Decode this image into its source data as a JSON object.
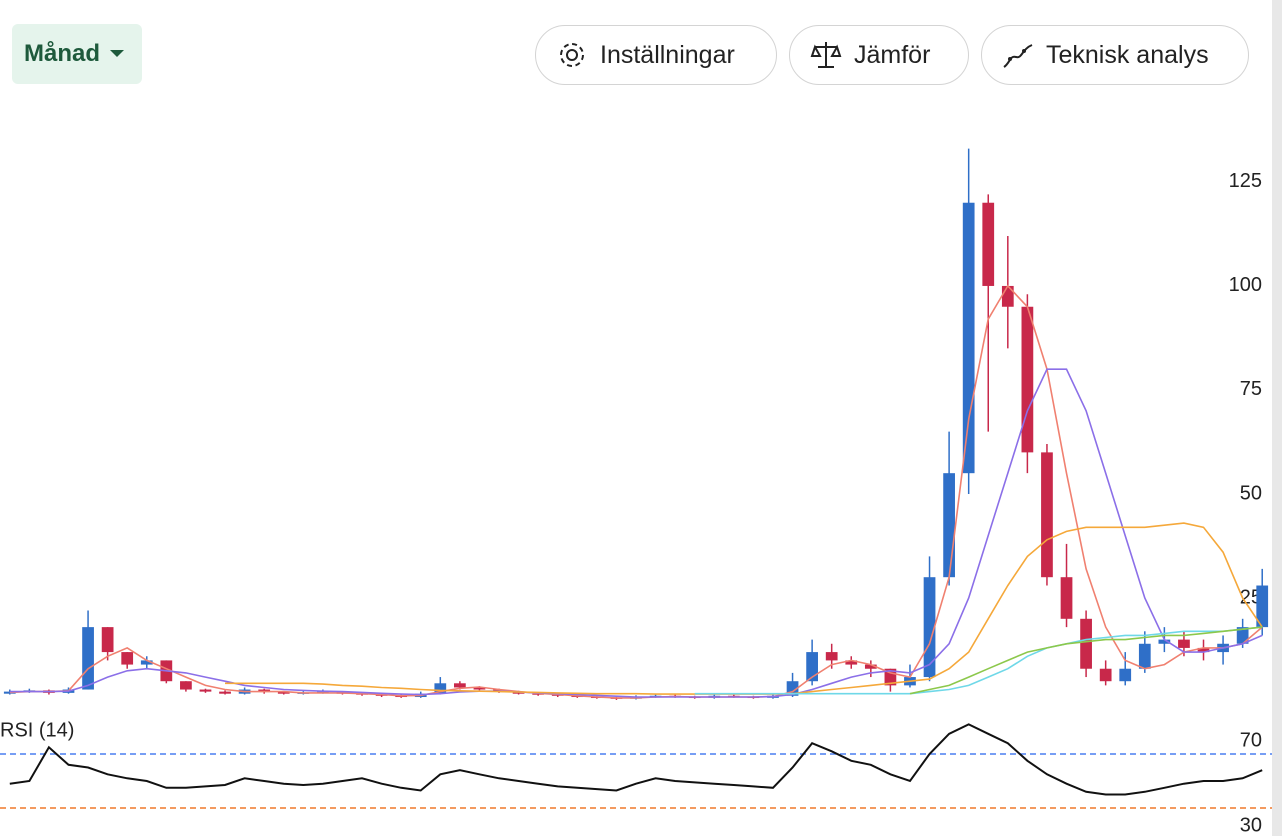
{
  "toolbar": {
    "period": "Månad",
    "buttons": [
      "Inställningar",
      "Jämför",
      "Teknisk analys"
    ]
  },
  "chart_data": [
    {
      "type": "candlestick",
      "up_color": "#2f6fc8",
      "down_color": "#c8284a",
      "ylim": [
        -3,
        137
      ],
      "yticks": [
        25,
        50,
        75,
        100,
        125
      ],
      "open": [
        2,
        2.5,
        2.8,
        2.2,
        3,
        18,
        12,
        9,
        10,
        5,
        3,
        2.5,
        2,
        3,
        2.5,
        2,
        2.2,
        2.5,
        2,
        1.8,
        1.5,
        1.2,
        2,
        4.5,
        3.5,
        3,
        2.5,
        2,
        1.8,
        1.5,
        1.2,
        1,
        0.8,
        1.2,
        1.5,
        1.2,
        1,
        1.5,
        1.2,
        1,
        1.5,
        5,
        12,
        10,
        9,
        8,
        4,
        6,
        30,
        55,
        120,
        100,
        95,
        60,
        30,
        20,
        8,
        5,
        8,
        14,
        15,
        13,
        12,
        14,
        18
      ],
      "high": [
        3,
        3.2,
        3,
        3.5,
        22,
        18,
        12,
        11,
        10,
        5,
        3.2,
        2.8,
        3.5,
        3.2,
        2.6,
        2.6,
        3,
        2.6,
        2.2,
        2,
        1.8,
        2.5,
        6,
        5,
        3.8,
        3.2,
        2.7,
        2.2,
        2,
        1.7,
        1.4,
        1.2,
        1.6,
        2,
        1.8,
        1.5,
        2,
        1.8,
        1.5,
        2,
        7,
        15,
        14,
        11,
        10,
        8,
        9,
        35,
        65,
        133,
        122,
        112,
        98,
        62,
        38,
        22,
        10,
        12,
        17,
        18,
        17,
        15,
        16,
        20,
        32
      ],
      "low": [
        1.8,
        2.2,
        1.8,
        2,
        3,
        10,
        8,
        8,
        4.5,
        2.5,
        2.2,
        1.8,
        1.8,
        2,
        1.8,
        1.8,
        2,
        1.8,
        1.5,
        1.2,
        1,
        1,
        1.8,
        3,
        2.8,
        2.2,
        1.8,
        1.5,
        1.2,
        1,
        0.8,
        0.5,
        0.6,
        1,
        1,
        0.8,
        0.8,
        1,
        0.8,
        0.8,
        1.2,
        4,
        8,
        8,
        6,
        2.5,
        3.5,
        5,
        28,
        50,
        65,
        85,
        55,
        28,
        18,
        6,
        4,
        4,
        7,
        12,
        11,
        10,
        9,
        13,
        16
      ],
      "close": [
        2.5,
        2.8,
        2.2,
        3,
        18,
        12,
        9,
        10,
        5,
        3,
        2.5,
        2,
        3,
        2.5,
        2,
        2.2,
        2.5,
        2,
        1.8,
        1.5,
        1.2,
        2,
        4.5,
        3.5,
        3,
        2.5,
        2,
        1.8,
        1.5,
        1.2,
        1,
        0.8,
        1.2,
        1.5,
        1.2,
        1,
        1.5,
        1.2,
        1,
        1.5,
        5,
        12,
        10,
        9,
        8,
        4,
        6,
        30,
        55,
        120,
        100,
        95,
        60,
        30,
        20,
        8,
        5,
        8,
        14,
        15,
        13,
        12,
        14,
        18,
        28
      ],
      "series": [
        {
          "color": "#f08070",
          "values": [
            2.3,
            2.5,
            2.5,
            2.7,
            8,
            11,
            13,
            10,
            8,
            6,
            4,
            3,
            2.5,
            2.5,
            2.5,
            2.2,
            2.2,
            2.2,
            2,
            1.8,
            1.5,
            1.6,
            2.5,
            3.3,
            3.6,
            3,
            2.5,
            2.1,
            1.8,
            1.5,
            1.2,
            1,
            1,
            1.2,
            1.3,
            1.2,
            1.2,
            1.2,
            1.2,
            1.3,
            2.5,
            6,
            9,
            10,
            9,
            7,
            6,
            14,
            30,
            68,
            92,
            100,
            95,
            80,
            55,
            32,
            18,
            10,
            8,
            9,
            12,
            13,
            13,
            14,
            18
          ]
        },
        {
          "color": "#8b6fe8",
          "values": [
            2.5,
            2.5,
            2.5,
            2.6,
            4,
            6,
            7.5,
            8,
            7.5,
            7,
            6,
            5,
            4,
            3.5,
            3,
            2.8,
            2.6,
            2.5,
            2.3,
            2.1,
            1.9,
            1.8,
            2,
            2.4,
            2.6,
            2.6,
            2.4,
            2.2,
            2,
            1.8,
            1.6,
            1.4,
            1.2,
            1.2,
            1.2,
            1.2,
            1.2,
            1.2,
            1.2,
            1.3,
            1.8,
            3,
            4.5,
            6,
            7,
            7.5,
            7,
            9,
            14,
            25,
            40,
            55,
            70,
            80,
            80,
            70,
            55,
            40,
            25,
            15,
            12,
            12,
            13,
            14,
            16
          ]
        },
        {
          "color": "#f5a83a",
          "values": [
            null,
            null,
            null,
            null,
            null,
            null,
            null,
            null,
            null,
            null,
            null,
            4.5,
            4.5,
            4.5,
            4.5,
            4.5,
            4.3,
            4,
            3.8,
            3.5,
            3.3,
            3,
            2.8,
            2.7,
            2.6,
            2.5,
            2.4,
            2.3,
            2.2,
            2.1,
            2,
            2,
            2,
            1.9,
            1.9,
            1.9,
            1.9,
            1.9,
            1.9,
            1.9,
            2,
            2.5,
            3,
            3.5,
            4,
            4.5,
            5,
            5.5,
            8,
            12,
            20,
            28,
            35,
            39,
            41,
            42,
            42,
            42,
            42,
            42.5,
            43,
            42,
            36,
            25,
            18
          ]
        },
        {
          "color": "#6fd8e8",
          "values": [
            null,
            null,
            null,
            null,
            null,
            null,
            null,
            null,
            null,
            null,
            null,
            null,
            null,
            null,
            null,
            null,
            null,
            null,
            null,
            null,
            null,
            null,
            null,
            null,
            null,
            null,
            null,
            null,
            null,
            null,
            null,
            null,
            null,
            null,
            null,
            2,
            2,
            2,
            2,
            2,
            2,
            2,
            2,
            2,
            2,
            2,
            2,
            2.5,
            3,
            4,
            6,
            8,
            11,
            13,
            14,
            15,
            15.5,
            16,
            16,
            16.5,
            17,
            17,
            17,
            17.5,
            18
          ]
        },
        {
          "color": "#8cc84b",
          "values": [
            null,
            null,
            null,
            null,
            null,
            null,
            null,
            null,
            null,
            null,
            null,
            null,
            null,
            null,
            null,
            null,
            null,
            null,
            null,
            null,
            null,
            null,
            null,
            null,
            null,
            null,
            null,
            null,
            null,
            null,
            null,
            null,
            null,
            null,
            null,
            null,
            null,
            null,
            null,
            null,
            null,
            null,
            null,
            null,
            null,
            null,
            2,
            3,
            4,
            6,
            8,
            10,
            12,
            13,
            14,
            14.5,
            15,
            15,
            15.5,
            16,
            16,
            16.5,
            17,
            17.5,
            18
          ]
        }
      ]
    },
    {
      "type": "line",
      "title": "RSI (14)",
      "ylim": [
        10,
        95
      ],
      "yticks": [
        70,
        30
      ],
      "hline_colors": [
        "#4a7ef0",
        "#f0782a"
      ],
      "series": [
        {
          "color": "#111111",
          "values": [
            48,
            50,
            75,
            62,
            60,
            55,
            52,
            50,
            45,
            45,
            46,
            47,
            52,
            50,
            48,
            47,
            48,
            50,
            52,
            48,
            45,
            43,
            55,
            58,
            55,
            52,
            50,
            48,
            46,
            45,
            44,
            43,
            48,
            52,
            50,
            49,
            48,
            47,
            46,
            45,
            60,
            78,
            72,
            65,
            62,
            55,
            50,
            70,
            85,
            92,
            85,
            78,
            65,
            55,
            48,
            42,
            40,
            40,
            42,
            45,
            48,
            50,
            50,
            52,
            58
          ]
        }
      ]
    }
  ]
}
